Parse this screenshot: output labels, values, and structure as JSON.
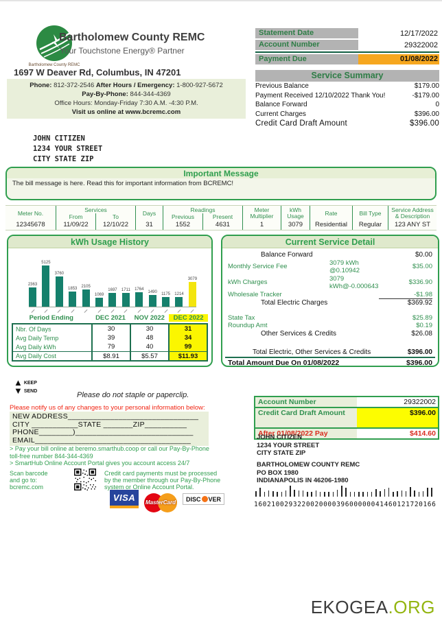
{
  "brand": {
    "company": "Bartholomew County REMC",
    "tagline": "Your Touchstone Energy® Partner",
    "logo_caption": "Bartholomew County REMC",
    "street_address": "1697 W Deaver Rd, Columbus, IN 47201",
    "phone_label": "Phone:",
    "phone": " 812-372-2546 ",
    "after_hours_label": "After Hours / Emergency:",
    "after_hours": " 1-800-927-5672",
    "pay_by_phone_label": "Pay-By-Phone:",
    "pay_by_phone": " 844-344-4369",
    "office_hours": "Office Hours: Monday-Friday 7:30 A.M. -4:30 P.M.",
    "visit_online": "Visit us online at www.bcremc.com"
  },
  "statement": {
    "statement_date_label": "Statement Date",
    "statement_date": "12/17/2022",
    "account_number_label": "Account Number",
    "account_number": "29322002",
    "payment_due_label": "Payment Due",
    "payment_due": "01/08/2022",
    "service_summary_title": "Service Summary",
    "summary_rows": [
      {
        "label": "Previous Balance",
        "value": "$179.00"
      },
      {
        "label": "Payment Received 12/10/2022 Thank You!",
        "value": "-$179.00"
      },
      {
        "label": "Balance Forward",
        "value": "0"
      },
      {
        "label": "Current Charges",
        "value": "$396.00"
      },
      {
        "label": "Credit Card Draft Amount",
        "value": "$396.00"
      }
    ]
  },
  "mailing_address_lines": [
    "JOHN CITIZEN",
    "1234 YOUR STREET",
    "CITY STATE ZIP"
  ],
  "important_message": {
    "title": "Important Message",
    "body": "The bill message is here. Read this for important information from BCREMC!"
  },
  "meter_table": {
    "columns": [
      {
        "header": "Meter No.",
        "value": "12345678"
      },
      {
        "group": "Services",
        "sub": [
          {
            "header": "From",
            "value": "11/09/22"
          },
          {
            "header": "To",
            "value": "12/10/22"
          }
        ]
      },
      {
        "header": "Days",
        "value": "31"
      },
      {
        "group": "Readings",
        "sub": [
          {
            "header": "Previous",
            "value": "1552"
          },
          {
            "header": "Present",
            "value": "4631"
          }
        ]
      },
      {
        "header": "Meter Multiplier",
        "value": "1"
      },
      {
        "header": "kWh Usage",
        "value": "3079"
      },
      {
        "header": "Rate",
        "value": "Residential"
      },
      {
        "header": "Bill Type",
        "value": "Regular"
      },
      {
        "header": "Service Address & Description",
        "value": "123 ANY ST"
      }
    ]
  },
  "chart_data": {
    "type": "bar",
    "title": "kWh Usage History",
    "values": [
      2363,
      5125,
      3760,
      1853,
      2105,
      1069,
      1697,
      1711,
      1764,
      1490,
      1175,
      1214,
      3079
    ],
    "highlight_index": 12,
    "ylim": [
      0,
      5125
    ],
    "bar_color": "#15806c",
    "highlight_color": "#f3e50e",
    "xlabel": "",
    "ylabel": ""
  },
  "usage_table": {
    "header": [
      "Period Ending",
      "DEC 2021",
      "NOV 2022",
      "DEC 2022"
    ],
    "rows": [
      {
        "label": "Nbr. Of Days",
        "values": [
          "30",
          "30",
          "31"
        ]
      },
      {
        "label": "Avg Daily Temp",
        "values": [
          "39",
          "48",
          "34"
        ]
      },
      {
        "label": "Avg Daily kWh",
        "values": [
          "79",
          "40",
          "99"
        ]
      },
      {
        "label": "Avg Daily Cost",
        "values": [
          "$8.91",
          "$5.57",
          "$11.93"
        ]
      }
    ]
  },
  "service_detail": {
    "title": "Current Service Detail",
    "rows": [
      {
        "label": "Balance Forward",
        "mid": "",
        "value": "$0.00",
        "kind": "subtotal"
      },
      {
        "label": "Monthly Service Fee",
        "mid": "3079 kWh @0.10942",
        "value": "$35.00",
        "kind": "line"
      },
      {
        "label": "kWh Charges",
        "mid": "3079 kWh@-0.000643",
        "value": "$336.90",
        "kind": "line"
      },
      {
        "label": "Wholesale Tracker",
        "mid": "",
        "value": "-$1.98",
        "kind": "line-underline"
      },
      {
        "label": "Total Electric Charges",
        "mid": "",
        "value": "$369.92",
        "kind": "subtotal"
      },
      {
        "label": "State Tax",
        "mid": "",
        "value": "$25.89",
        "kind": "line"
      },
      {
        "label": "Roundup Amt",
        "mid": "",
        "value": "$0.19",
        "kind": "line"
      },
      {
        "label": "Other Services & Credits",
        "mid": "",
        "value": "$26.08",
        "kind": "subtotal"
      },
      {
        "label": "Total Electric, Other Services & Credits",
        "mid": "",
        "value": "$396.00",
        "kind": "grand"
      },
      {
        "label": "Total Amount Due On 01/08/2022",
        "mid": "",
        "value": "$396.00",
        "kind": "due"
      },
      {
        "label": "After 01/08/2022 Pay",
        "mid": "",
        "value": "$414.60",
        "kind": "after"
      }
    ]
  },
  "stub": {
    "keep": "KEEP",
    "send": "SEND",
    "staple_note": "Please do not staple or paperclip.",
    "notice": "Please notify us of any changes to your personal information below:",
    "form_lines": [
      "NEW ADDRESS_______________________________",
      "CITY ___________STATE _______ZIP__________",
      "PHONE________)____________________________",
      "EMAIL_____________________________________"
    ],
    "pay_lines": [
      "> Pay your bill online at beremo.smarthub.coop or call our Pay-By-Phone",
      "toll-free number 844-344-4369",
      "> SmartHub Online Account Portal gives you account access 24/7"
    ],
    "scan_lines": [
      "Scan barcode",
      "and go to:",
      "bcremc.com"
    ],
    "credit_lines": [
      "Credit card payments must be processed",
      "by the member through our Pay-By-Phone",
      "system or Online Account Portal."
    ],
    "cards": [
      {
        "name": "VISA"
      },
      {
        "name": "MasterCard"
      },
      {
        "name": "DISCOVER"
      }
    ]
  },
  "remit": {
    "account_number_label": "Account Number",
    "account_number": "29322002",
    "ccd_label": "Credit Card Draft Amount",
    "ccd_value": "$396.00",
    "after_label": "After 01/08/2022 Pay",
    "after_value": "$414.60",
    "recipient_lines": [
      "JOHN CITIZEN",
      "1234 YOUR STREET",
      "CITY STATE ZIP"
    ],
    "company_lines": [
      "BARTHOLOMEW COUNTY REMC",
      "PO BOX 1980",
      "INDIANAPOLIS IN 46206-1980"
    ],
    "ocr_line": "160210029322002000039600000041460121720166"
  },
  "footer": {
    "brand_dark": "EKOGEA",
    "brand_green": ".ORG"
  },
  "colors": {
    "green_text": "#2f8f4e",
    "green_border": "#2f9e4e",
    "gray_band": "#b3b3b3",
    "amber_due": "#f6a71f",
    "highlight_yellow": "#fbf600",
    "bar_teal": "#15806c",
    "bar_yellow": "#f3e50e",
    "alert_red": "#d92c1f",
    "panel_light_green": "#e9efda"
  }
}
